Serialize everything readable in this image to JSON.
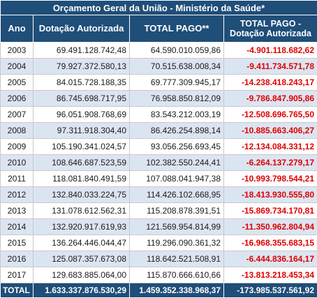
{
  "title": "Orçamento Geral da União - Ministério da Saúde*",
  "headers": {
    "ano": "Ano",
    "dotacao": "Dotação Autorizada",
    "total_pago": "TOTAL PAGO**",
    "diff_line1": "TOTAL PAGO -",
    "diff_line2": "Dotação Autorizada"
  },
  "rows": [
    {
      "ano": "2003",
      "dotacao": "69.491.128.742,48",
      "total_pago": "64.590.010.059,86",
      "diff": "-4.901.118.682,62"
    },
    {
      "ano": "2004",
      "dotacao": "79.927.372.580,13",
      "total_pago": "70.515.638.008,34",
      "diff": "-9.411.734.571,78"
    },
    {
      "ano": "2005",
      "dotacao": "84.015.728.188,35",
      "total_pago": "69.777.309.945,17",
      "diff": "-14.238.418.243,17"
    },
    {
      "ano": "2006",
      "dotacao": "86.745.698.717,95",
      "total_pago": "76.958.850.812,09",
      "diff": "-9.786.847.905,86"
    },
    {
      "ano": "2007",
      "dotacao": "96.051.908.768,69",
      "total_pago": "83.543.212.003,19",
      "diff": "-12.508.696.765,50"
    },
    {
      "ano": "2008",
      "dotacao": "97.311.918.304,40",
      "total_pago": "86.426.254.898,14",
      "diff": "-10.885.663.406,27"
    },
    {
      "ano": "2009",
      "dotacao": "105.190.341.024,57",
      "total_pago": "93.056.256.693,45",
      "diff": "-12.134.084.331,12"
    },
    {
      "ano": "2010",
      "dotacao": "108.646.687.523,59",
      "total_pago": "102.382.550.244,41",
      "diff": "-6.264.137.279,17"
    },
    {
      "ano": "2011",
      "dotacao": "118.081.840.491,59",
      "total_pago": "107.088.041.947,38",
      "diff": "-10.993.798.544,21"
    },
    {
      "ano": "2012",
      "dotacao": "132.840.033.224,75",
      "total_pago": "114.426.102.668,95",
      "diff": "-18.413.930.555,80"
    },
    {
      "ano": "2013",
      "dotacao": "131.078.612.562,31",
      "total_pago": "115.208.878.391,51",
      "diff": "-15.869.734.170,81"
    },
    {
      "ano": "2014",
      "dotacao": "132.920.917.619,93",
      "total_pago": "121.569.954.814,99",
      "diff": "-11.350.962.804,94"
    },
    {
      "ano": "2015",
      "dotacao": "136.264.446.044,47",
      "total_pago": "119.296.090.361,32",
      "diff": "-16.968.355.683,15"
    },
    {
      "ano": "2016",
      "dotacao": "125.087.357.673,08",
      "total_pago": "118.642.521.508,91",
      "diff": "-6.444.836.164,17"
    },
    {
      "ano": "2017",
      "dotacao": "129.683.885.064,00",
      "total_pago": "115.870.666.610,66",
      "diff": "-13.813.218.453,34"
    }
  ],
  "total": {
    "label": "TOTAL",
    "dotacao": "1.633.337.876.530,29",
    "total_pago": "1.459.352.338.968,37",
    "diff": "-173.985.537.561,92"
  },
  "colors": {
    "header_bg": "#1f4e79",
    "alt_row_bg": "#dbe5f1",
    "negative": "#e00000"
  }
}
